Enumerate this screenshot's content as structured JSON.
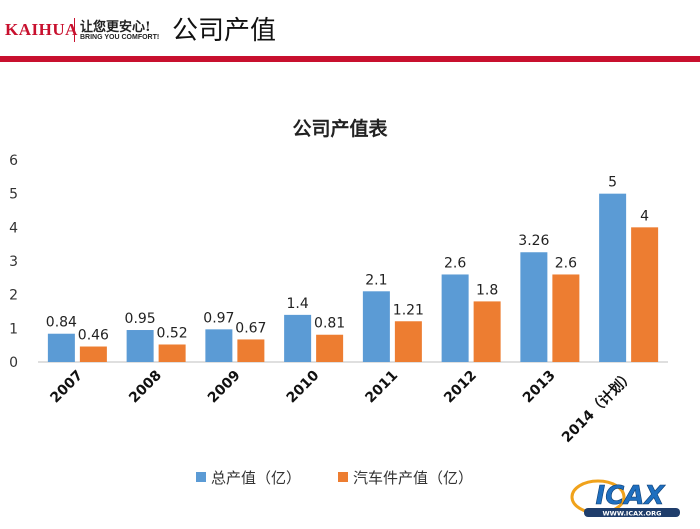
{
  "header": {
    "brand": "KAIHUA",
    "slogan_cn": "让您更安心!",
    "slogan_en": "BRING YOU COMFORT!",
    "title": "公司产值"
  },
  "chart_data": {
    "type": "bar",
    "title": "公司产值表",
    "categories": [
      "2007",
      "2008",
      "2009",
      "2010",
      "2011",
      "2012",
      "2013",
      "2014（计划）"
    ],
    "series": [
      {
        "name": "总产值（亿）",
        "values": [
          0.84,
          0.95,
          0.97,
          1.4,
          2.1,
          2.6,
          3.26,
          5
        ],
        "labels": [
          "0.84",
          "0.95",
          "0.97",
          "1.4",
          "2.1",
          "2.6",
          "3.26",
          "5"
        ]
      },
      {
        "name": "汽车件产值（亿）",
        "values": [
          0.46,
          0.52,
          0.67,
          0.81,
          1.21,
          1.8,
          2.6,
          4
        ],
        "labels": [
          "0.46",
          "0.52",
          "0.67",
          "0.81",
          "1.21",
          "1.8",
          "2.6",
          "4"
        ]
      }
    ],
    "ylim": [
      0,
      6
    ],
    "yticks": [
      "0",
      "1",
      "2",
      "3",
      "4",
      "5",
      "6"
    ],
    "grid": false,
    "legend_position": "bottom"
  },
  "colors": {
    "series0": "#5b9bd5",
    "series1": "#ed7d31",
    "accent": "#c8102e"
  },
  "badge": {
    "text": "ICAX",
    "subtext": "WWW.ICAX.ORG"
  }
}
